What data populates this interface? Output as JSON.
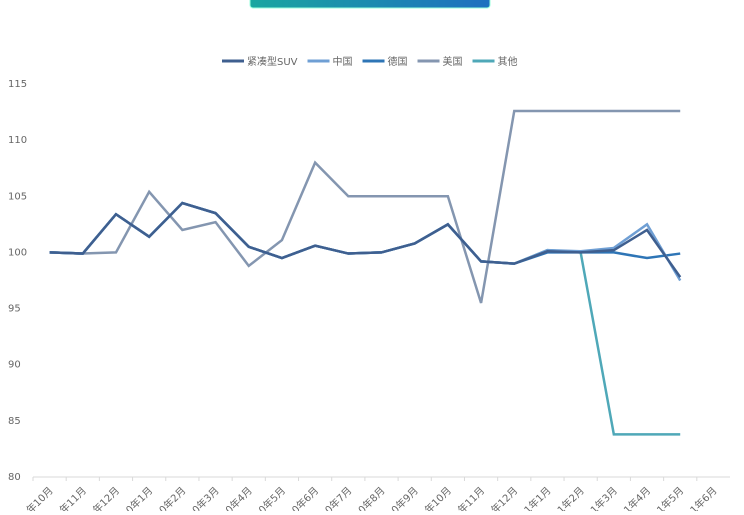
{
  "chart_data": {
    "type": "line",
    "categories": [
      "年10月",
      "年11月",
      "年12月",
      "0年1月",
      "0年2月",
      "0年3月",
      "0年4月",
      "0年5月",
      "0年6月",
      "0年7月",
      "0年8月",
      "0年9月",
      "年10月",
      "年11月",
      "年12月",
      "1年1月",
      "1年2月",
      "1年3月",
      "1年4月",
      "1年5月",
      "1年6月"
    ],
    "series": [
      {
        "name": "紧凑型SUV",
        "color": "#3f5f8f",
        "values": [
          100,
          99.9,
          103.4,
          101.4,
          104.4,
          103.5,
          100.5,
          99.5,
          100.6,
          99.9,
          100,
          100.8,
          102.5,
          99.2,
          99,
          100.1,
          100,
          100.2,
          102,
          97.8,
          null
        ]
      },
      {
        "name": "中国",
        "color": "#6f9fd4",
        "values": [
          100,
          99.9,
          103.4,
          101.4,
          104.4,
          103.5,
          100.5,
          99.5,
          100.6,
          99.9,
          100,
          100.8,
          102.5,
          99.2,
          99,
          100.2,
          100.1,
          100.4,
          102.5,
          97.5,
          null
        ]
      },
      {
        "name": "德国",
        "color": "#2e75b6",
        "values": [
          100,
          99.9,
          103.4,
          101.4,
          104.4,
          103.5,
          100.5,
          99.5,
          100.6,
          99.9,
          100,
          100.8,
          102.5,
          99.2,
          99,
          100,
          100,
          100,
          99.5,
          99.9,
          null
        ]
      },
      {
        "name": "美国",
        "color": "#8496b0",
        "values": [
          100,
          99.9,
          100,
          105.4,
          102,
          102.7,
          98.8,
          101.1,
          108,
          105,
          105,
          105,
          105,
          95.5,
          112.6,
          112.6,
          112.6,
          112.6,
          112.6,
          112.6,
          null
        ]
      },
      {
        "name": "其他",
        "color": "#4fa8b8",
        "values": [
          100,
          99.9,
          103.4,
          101.4,
          104.4,
          103.5,
          100.5,
          99.5,
          100.6,
          99.9,
          100,
          100.8,
          102.5,
          99.2,
          99,
          100.2,
          100,
          83.8,
          83.8,
          83.8,
          null
        ]
      }
    ],
    "ylim": [
      80,
      115
    ],
    "yticks": [
      80,
      85,
      90,
      95,
      100,
      105,
      110,
      115
    ]
  }
}
